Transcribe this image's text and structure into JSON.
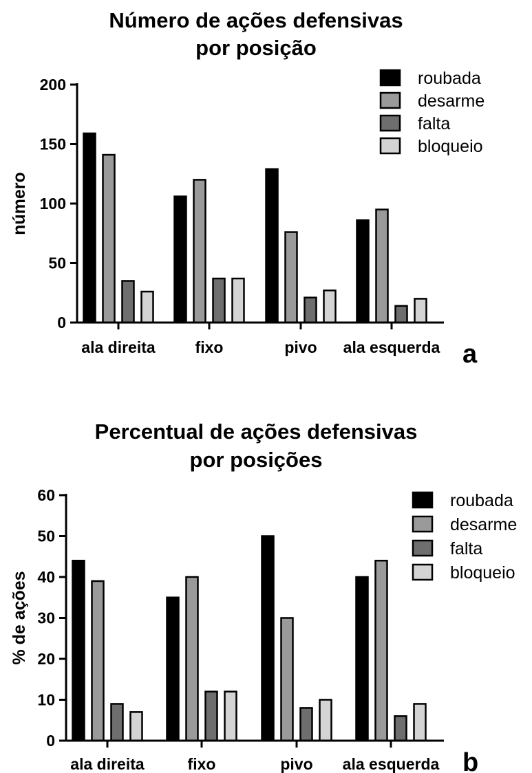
{
  "chart_data": [
    {
      "type": "bar",
      "title_lines": [
        "Número de ações defensivas",
        "por posição"
      ],
      "xlabel": "",
      "ylabel": "número",
      "ylim": [
        0,
        200
      ],
      "yticks": [
        0,
        50,
        100,
        150,
        200
      ],
      "categories": [
        "ala direita",
        "fixo",
        "pivo",
        "ala esquerda"
      ],
      "series": [
        {
          "name": "roubada",
          "color": "#000000",
          "values": [
            159,
            106,
            129,
            86
          ]
        },
        {
          "name": "desarme",
          "color": "#9a9a9a",
          "values": [
            141,
            120,
            76,
            95
          ]
        },
        {
          "name": "falta",
          "color": "#6e6e6e",
          "values": [
            35,
            37,
            21,
            14
          ]
        },
        {
          "name": "bloqueio",
          "color": "#d4d4d4",
          "values": [
            26,
            37,
            27,
            20
          ]
        }
      ],
      "legend_position": "top-right",
      "grid": false,
      "panel_label": "a"
    },
    {
      "type": "bar",
      "title_lines": [
        "Percentual de ações defensivas",
        "por posições"
      ],
      "xlabel": "",
      "ylabel": "% de ações",
      "ylim": [
        0,
        60
      ],
      "yticks": [
        0,
        10,
        20,
        30,
        40,
        50,
        60
      ],
      "categories": [
        "ala direita",
        "fixo",
        "pivo",
        "ala esquerda"
      ],
      "series": [
        {
          "name": "roubada",
          "color": "#000000",
          "values": [
            44,
            35,
            50,
            40
          ]
        },
        {
          "name": "desarme",
          "color": "#9a9a9a",
          "values": [
            39,
            40,
            30,
            44
          ]
        },
        {
          "name": "falta",
          "color": "#6e6e6e",
          "values": [
            9,
            12,
            8,
            6
          ]
        },
        {
          "name": "bloqueio",
          "color": "#d4d4d4",
          "values": [
            7,
            12,
            10,
            9
          ]
        }
      ],
      "legend_position": "top-right",
      "grid": false,
      "panel_label": "b"
    }
  ]
}
